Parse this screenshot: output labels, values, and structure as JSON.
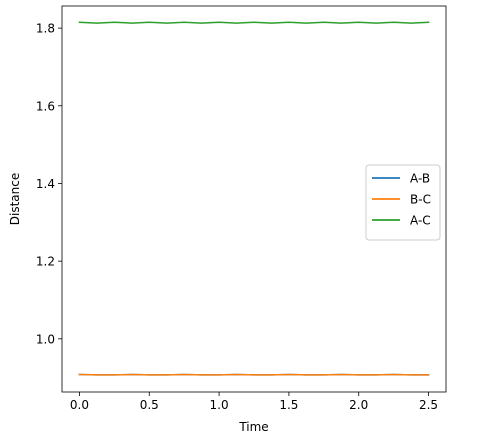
{
  "chart_data": {
    "type": "line",
    "title": "",
    "xlabel": "Time",
    "ylabel": "Distance",
    "xlim": [
      -0.125,
      2.625
    ],
    "ylim": [
      0.863,
      1.857
    ],
    "xticks": [
      0.0,
      0.5,
      1.0,
      1.5,
      2.0,
      2.5
    ],
    "xtick_labels": [
      "0.0",
      "0.5",
      "1.0",
      "1.5",
      "2.0",
      "2.5"
    ],
    "yticks": [
      1.0,
      1.2,
      1.4,
      1.6,
      1.8
    ],
    "ytick_labels": [
      "1.0",
      "1.2",
      "1.4",
      "1.6",
      "1.8"
    ],
    "grid": false,
    "legend_position": "center-right",
    "x": [
      0.0,
      0.125,
      0.25,
      0.375,
      0.5,
      0.625,
      0.75,
      0.875,
      1.0,
      1.125,
      1.25,
      1.375,
      1.5,
      1.625,
      1.75,
      1.875,
      2.0,
      2.125,
      2.25,
      2.375,
      2.5
    ],
    "series": [
      {
        "name": "A-B",
        "color": "#1f77b4",
        "values": [
          0.908,
          0.907,
          0.907,
          0.908,
          0.907,
          0.907,
          0.908,
          0.907,
          0.907,
          0.908,
          0.907,
          0.907,
          0.908,
          0.907,
          0.907,
          0.908,
          0.907,
          0.907,
          0.908,
          0.907,
          0.907
        ]
      },
      {
        "name": "B-C",
        "color": "#ff7f0e",
        "values": [
          0.908,
          0.907,
          0.907,
          0.908,
          0.907,
          0.907,
          0.908,
          0.907,
          0.907,
          0.908,
          0.907,
          0.907,
          0.908,
          0.907,
          0.907,
          0.908,
          0.907,
          0.907,
          0.908,
          0.907,
          0.907
        ]
      },
      {
        "name": "A-C",
        "color": "#2ca02c",
        "values": [
          1.815,
          1.813,
          1.815,
          1.813,
          1.815,
          1.813,
          1.815,
          1.813,
          1.815,
          1.813,
          1.815,
          1.813,
          1.815,
          1.813,
          1.815,
          1.813,
          1.815,
          1.813,
          1.815,
          1.813,
          1.815
        ]
      }
    ]
  }
}
